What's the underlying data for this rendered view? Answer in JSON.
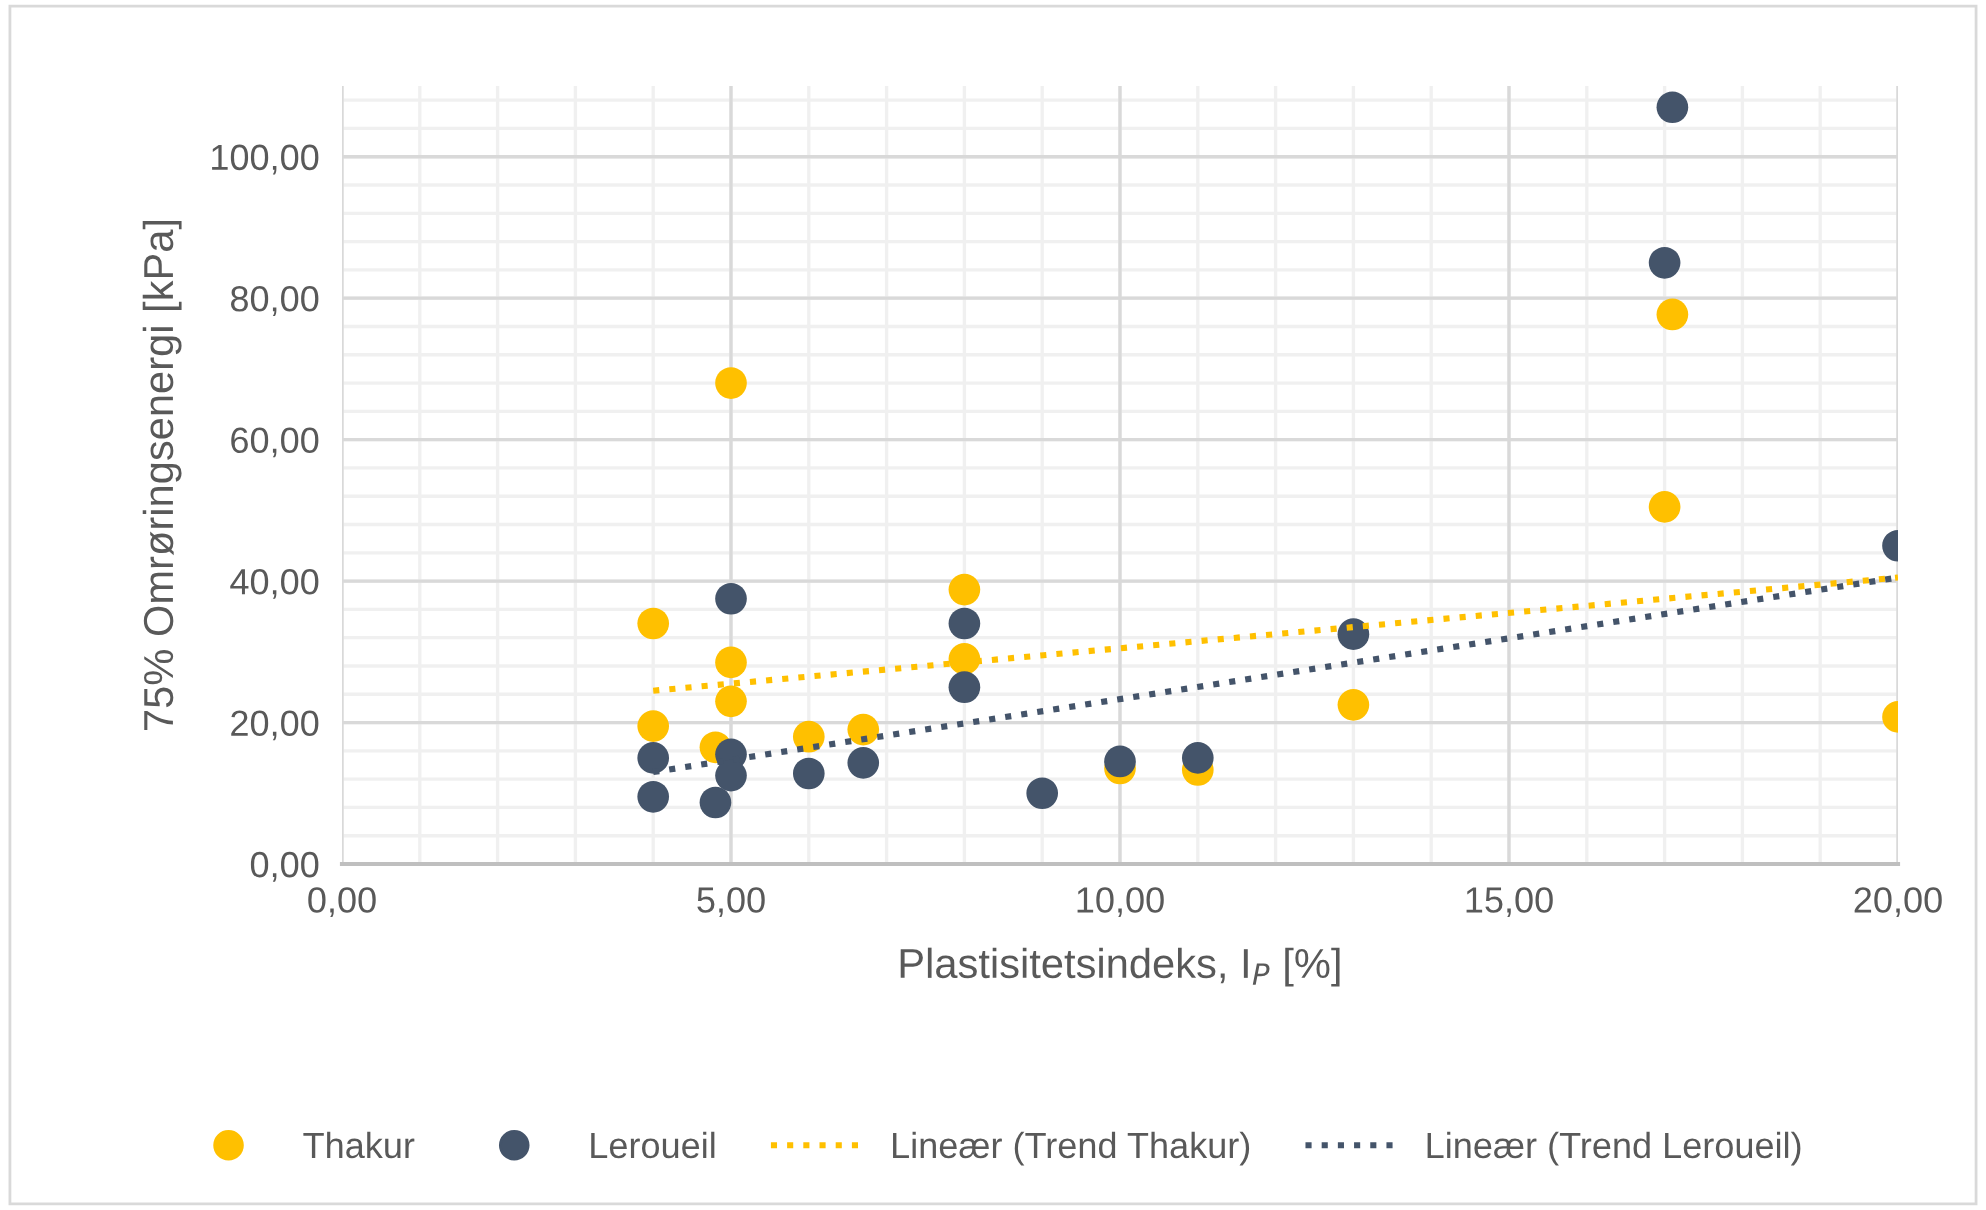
{
  "chart_data": {
    "type": "scatter",
    "xlabel": "Plastisitetsindeks, I$_{P}$ [%]",
    "ylabel": "75% Omrøringsenergi [kPa]",
    "xlim": [
      0,
      20
    ],
    "ylim": [
      0,
      110
    ],
    "xticks": [
      {
        "value": 0,
        "label": "0,00"
      },
      {
        "value": 5,
        "label": "5,00"
      },
      {
        "value": 10,
        "label": "10,00"
      },
      {
        "value": 15,
        "label": "15,00"
      },
      {
        "value": 20,
        "label": "20,00"
      }
    ],
    "yticks": [
      {
        "value": 0,
        "label": "0,00"
      },
      {
        "value": 20,
        "label": "20,00"
      },
      {
        "value": 40,
        "label": "40,00"
      },
      {
        "value": 60,
        "label": "60,00"
      },
      {
        "value": 80,
        "label": "80,00"
      },
      {
        "value": 100,
        "label": "100,00"
      }
    ],
    "grid": true,
    "legend": "bottom",
    "marker": "circle",
    "series": [
      {
        "name": "Thakur",
        "color": "#ffc000",
        "x": [
          4,
          4,
          4.8,
          5,
          5,
          5,
          6,
          6.7,
          8,
          8,
          10,
          11,
          13,
          17,
          17.1,
          20
        ],
        "values": [
          34,
          19.5,
          16.5,
          68,
          28.5,
          23,
          18,
          19,
          38.8,
          29,
          13.5,
          13.3,
          22.5,
          50.5,
          77.7,
          20.8
        ]
      },
      {
        "name": "Leroueil",
        "color": "#44546a",
        "x": [
          4,
          4,
          4.8,
          5,
          5,
          5,
          6,
          6.7,
          8,
          8,
          9,
          10,
          11,
          13,
          17,
          17.1,
          20
        ],
        "values": [
          15,
          9.5,
          8.7,
          37.5,
          15.5,
          12.5,
          12.8,
          14.3,
          34,
          25,
          10,
          14.5,
          15,
          32.5,
          85,
          107,
          45
        ]
      },
      {
        "name": "Lineær (Trend Thakur)",
        "type": "line",
        "line_style": "dotted",
        "marker": "none",
        "color": "#ffc000",
        "x": [
          4,
          20
        ],
        "values": [
          24.5,
          40.5
        ]
      },
      {
        "name": "Lineær (Trend Leroueil)",
        "type": "line",
        "line_style": "dotted",
        "marker": "none",
        "color": "#44546a",
        "x": [
          4,
          20
        ],
        "values": [
          13,
          40.5
        ]
      }
    ]
  }
}
